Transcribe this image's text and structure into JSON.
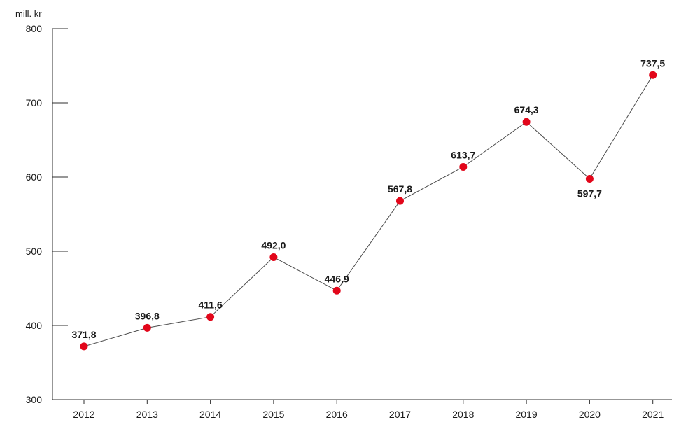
{
  "chart_data": {
    "type": "line",
    "title": "",
    "xlabel": "",
    "ylabel": "mill. kr",
    "unit_label": "mill. kr",
    "categories": [
      "2012",
      "2013",
      "2014",
      "2015",
      "2016",
      "2017",
      "2018",
      "2019",
      "2020",
      "2021"
    ],
    "values": [
      371.8,
      396.8,
      411.6,
      492.0,
      446.9,
      567.8,
      613.7,
      674.3,
      597.7,
      737.5
    ],
    "data_labels": [
      "371,8",
      "396,8",
      "411,6",
      "492,0",
      "446,9",
      "567,8",
      "613,7",
      "674,3",
      "597,7",
      "737,5"
    ],
    "label_positions": [
      "above",
      "above",
      "above",
      "above",
      "above",
      "above",
      "above",
      "above",
      "below",
      "above"
    ],
    "y_ticks": [
      300,
      400,
      500,
      600,
      700,
      800
    ],
    "ylim": [
      300,
      800
    ],
    "grid": false,
    "legend": "none",
    "colors": {
      "point": "#e2061a",
      "line": "#4a4a4a",
      "axis": "#2f2f2f",
      "text": "#1a1a1a"
    }
  }
}
